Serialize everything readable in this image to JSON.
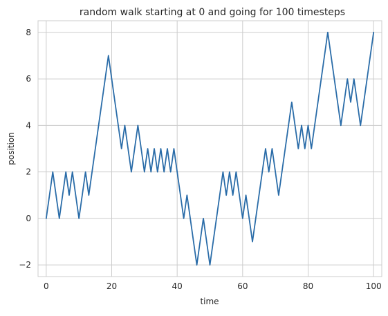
{
  "chart_data": {
    "type": "line",
    "title": "random walk starting at 0 and going for 100 timesteps",
    "xlabel": "time",
    "ylabel": "position",
    "xlim": [
      -2.5,
      102.5
    ],
    "ylim": [
      -2.5,
      8.5
    ],
    "xticks": [
      0,
      20,
      40,
      60,
      80,
      100
    ],
    "yticks": [
      -2,
      0,
      2,
      4,
      6,
      8
    ],
    "xtick_labels": [
      "0",
      "20",
      "40",
      "60",
      "80",
      "100"
    ],
    "ytick_labels": [
      "−2",
      "0",
      "2",
      "4",
      "6",
      "8"
    ],
    "grid": true,
    "legend": "none",
    "line_color": "#2a6ca8",
    "series": [
      {
        "x": [
          0,
          1,
          2,
          3,
          4,
          5,
          6,
          7,
          8,
          9,
          10,
          11,
          12,
          13,
          14,
          15,
          16,
          17,
          18,
          19,
          20,
          21,
          22,
          23,
          24,
          25,
          26,
          27,
          28,
          29,
          30,
          31,
          32,
          33,
          34,
          35,
          36,
          37,
          38,
          39,
          40,
          41,
          42,
          43,
          44,
          45,
          46,
          47,
          48,
          49,
          50,
          51,
          52,
          53,
          54,
          55,
          56,
          57,
          58,
          59,
          60,
          61,
          62,
          63,
          64,
          65,
          66,
          67,
          68,
          69,
          70,
          71,
          72,
          73,
          74,
          75,
          76,
          77,
          78,
          79,
          80,
          81,
          82,
          83,
          84,
          85,
          86,
          87,
          88,
          89,
          90,
          91,
          92,
          93,
          94,
          95,
          96,
          97,
          98,
          99,
          100
        ],
        "values": [
          0,
          1,
          2,
          1,
          0,
          1,
          2,
          1,
          2,
          1,
          0,
          1,
          2,
          1,
          2,
          3,
          4,
          5,
          6,
          7,
          6,
          5,
          4,
          3,
          4,
          3,
          2,
          3,
          4,
          3,
          2,
          3,
          2,
          3,
          2,
          3,
          2,
          3,
          2,
          3,
          2,
          1,
          0,
          1,
          0,
          -1,
          -2,
          -1,
          0,
          -1,
          -2,
          -1,
          0,
          1,
          2,
          1,
          2,
          1,
          2,
          1,
          0,
          1,
          0,
          -1,
          0,
          1,
          2,
          3,
          2,
          3,
          2,
          1,
          2,
          3,
          4,
          5,
          4,
          3,
          4,
          3,
          4,
          3,
          4,
          5,
          6,
          7,
          8,
          7,
          6,
          5,
          4,
          5,
          6,
          5,
          6,
          5,
          4,
          5,
          6,
          7,
          8
        ]
      }
    ]
  }
}
